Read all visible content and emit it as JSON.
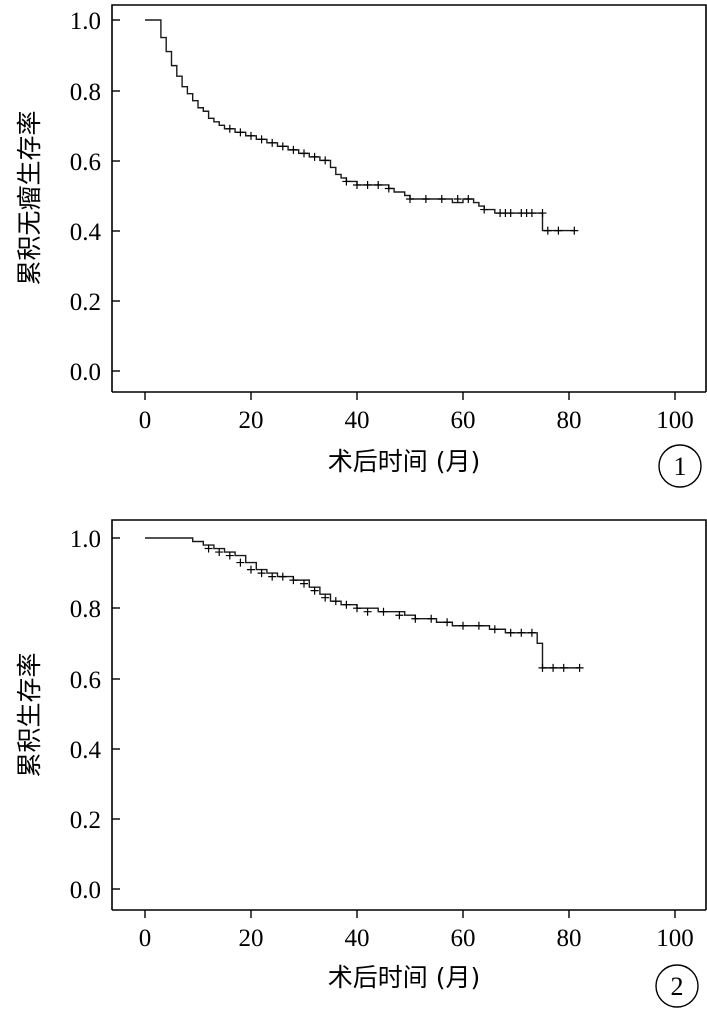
{
  "chart_data": [
    {
      "type": "line",
      "panel_label": "1",
      "xlabel": "术后时间 (月)",
      "ylabel": "累积无瘤生存率",
      "xlim": [
        -6,
        106
      ],
      "ylim": [
        -0.06,
        1.04
      ],
      "xticks": [
        0,
        20,
        40,
        60,
        80,
        100
      ],
      "yticks": [
        0.0,
        0.2,
        0.4,
        0.6,
        0.8,
        1.0
      ],
      "xtick_labels": [
        "0",
        "20",
        "40",
        "60",
        "80",
        "100"
      ],
      "ytick_labels": [
        "0.0",
        "0.2",
        "0.4",
        "0.6",
        "0.8",
        "1.0"
      ],
      "grid": false,
      "x": [
        0,
        2,
        3,
        4,
        5,
        6,
        7,
        8,
        9,
        10,
        11,
        12,
        13,
        14,
        15,
        17,
        19,
        21,
        23,
        25,
        27,
        29,
        31,
        33,
        35,
        36,
        37,
        38,
        40,
        46,
        47,
        49,
        50,
        55,
        58,
        60,
        62,
        63,
        64,
        66,
        70,
        75,
        76,
        81
      ],
      "y": [
        1.0,
        1.0,
        0.95,
        0.91,
        0.87,
        0.84,
        0.81,
        0.79,
        0.77,
        0.75,
        0.74,
        0.72,
        0.71,
        0.7,
        0.69,
        0.68,
        0.67,
        0.66,
        0.65,
        0.64,
        0.63,
        0.62,
        0.61,
        0.6,
        0.58,
        0.56,
        0.55,
        0.54,
        0.53,
        0.52,
        0.51,
        0.5,
        0.49,
        0.49,
        0.48,
        0.49,
        0.48,
        0.47,
        0.46,
        0.45,
        0.45,
        0.4,
        0.4,
        0.4
      ],
      "censored_x": [
        16,
        18,
        20,
        22,
        24,
        26,
        28,
        30,
        32,
        34,
        38,
        40,
        42,
        44,
        46,
        50,
        53,
        56,
        59,
        61,
        64,
        67,
        68,
        69,
        71,
        72,
        73,
        75,
        76,
        78,
        81
      ],
      "censored_y": [
        0.69,
        0.68,
        0.67,
        0.66,
        0.65,
        0.64,
        0.63,
        0.62,
        0.61,
        0.6,
        0.54,
        0.53,
        0.53,
        0.53,
        0.52,
        0.49,
        0.49,
        0.49,
        0.49,
        0.49,
        0.46,
        0.45,
        0.45,
        0.45,
        0.45,
        0.45,
        0.45,
        0.45,
        0.4,
        0.4,
        0.4
      ]
    },
    {
      "type": "line",
      "panel_label": "2",
      "xlabel": "术后时间 (月)",
      "ylabel": "累积生存率",
      "xlim": [
        -6,
        106
      ],
      "ylim": [
        -0.06,
        1.04
      ],
      "xticks": [
        0,
        20,
        40,
        60,
        80,
        100
      ],
      "yticks": [
        0.0,
        0.2,
        0.4,
        0.6,
        0.8,
        1.0
      ],
      "xtick_labels": [
        "0",
        "20",
        "40",
        "60",
        "80",
        "100"
      ],
      "ytick_labels": [
        "0.0",
        "0.2",
        "0.4",
        "0.6",
        "0.8",
        "1.0"
      ],
      "grid": false,
      "x": [
        0,
        7,
        9,
        11,
        13,
        15,
        17,
        19,
        21,
        23,
        25,
        28,
        31,
        33,
        35,
        37,
        40,
        44,
        49,
        51,
        55,
        58,
        62,
        65,
        68,
        72,
        74,
        75,
        82
      ],
      "y": [
        1.0,
        1.0,
        0.99,
        0.98,
        0.97,
        0.96,
        0.95,
        0.93,
        0.91,
        0.9,
        0.89,
        0.88,
        0.86,
        0.84,
        0.82,
        0.81,
        0.8,
        0.79,
        0.78,
        0.77,
        0.76,
        0.75,
        0.75,
        0.74,
        0.73,
        0.73,
        0.7,
        0.63,
        0.63
      ],
      "censored_x": [
        12,
        14,
        16,
        18,
        20,
        22,
        24,
        26,
        28,
        30,
        32,
        34,
        36,
        38,
        40,
        42,
        45,
        48,
        51,
        54,
        57,
        60,
        63,
        66,
        69,
        71,
        73,
        75,
        77,
        79,
        82
      ],
      "censored_y": [
        0.97,
        0.96,
        0.95,
        0.93,
        0.91,
        0.9,
        0.89,
        0.89,
        0.88,
        0.87,
        0.85,
        0.83,
        0.82,
        0.81,
        0.8,
        0.79,
        0.79,
        0.78,
        0.77,
        0.77,
        0.76,
        0.75,
        0.75,
        0.74,
        0.73,
        0.73,
        0.73,
        0.63,
        0.63,
        0.63,
        0.63
      ]
    }
  ]
}
